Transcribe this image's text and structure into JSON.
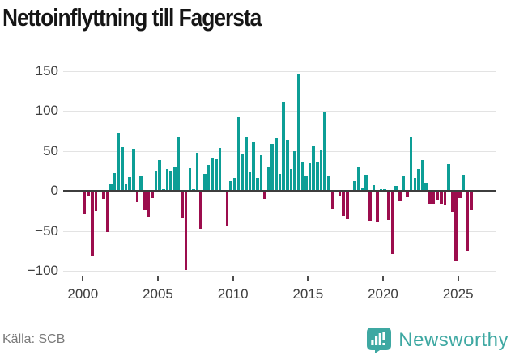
{
  "title": "Nettoinflyttning till Fagersta",
  "footer": {
    "source_label": "Källa: SCB",
    "brand": "Newsworthy"
  },
  "colors": {
    "positive_bar": "#0d9e96",
    "negative_bar": "#9c0d4d",
    "grid": "#e3e3e3",
    "zero_line": "#3d3d3d",
    "axis_text": "#3e3e3e",
    "title_text": "#151515",
    "source_text": "#7a7a7a",
    "brand_teal": "#3ea8a2",
    "background": "#ffffff"
  },
  "chart_data": {
    "type": "bar",
    "title": "Nettoinflyttning till Fagersta",
    "frequency": "quarterly",
    "x_start": "2000Q1",
    "x_end": "2025Q4",
    "ylim": [
      -110,
      160
    ],
    "grid": true,
    "legend": false,
    "y_ticks": [
      {
        "value": 150,
        "label": "150"
      },
      {
        "value": 100,
        "label": "100"
      },
      {
        "value": 50,
        "label": "50"
      },
      {
        "value": 0,
        "label": "0"
      },
      {
        "value": -50,
        "label": "−50"
      },
      {
        "value": -100,
        "label": "−100"
      }
    ],
    "x_ticks": [
      {
        "year": 2000,
        "label": "2000"
      },
      {
        "year": 2005,
        "label": "2005"
      },
      {
        "year": 2010,
        "label": "2010"
      },
      {
        "year": 2015,
        "label": "2015"
      },
      {
        "year": 2020,
        "label": "2020"
      },
      {
        "year": 2025,
        "label": "2025"
      }
    ],
    "series": [
      {
        "name": "Nettoinflyttning",
        "values": [
          -28,
          -5,
          -80,
          -24,
          0,
          -9,
          -50,
          9,
          22,
          72,
          55,
          9,
          17,
          53,
          -13,
          18,
          -23,
          -31,
          -8,
          25,
          38,
          2,
          27,
          24,
          29,
          67,
          -33,
          -98,
          28,
          2,
          47,
          -46,
          21,
          32,
          41,
          39,
          54,
          0,
          -42,
          12,
          16,
          92,
          45,
          67,
          23,
          62,
          16,
          44,
          -9,
          29,
          59,
          66,
          21,
          111,
          64,
          27,
          50,
          145,
          36,
          18,
          35,
          56,
          36,
          51,
          98,
          18,
          -22,
          0,
          -5,
          -30,
          -34,
          0,
          12,
          30,
          4,
          19,
          -36,
          7,
          -38,
          2,
          2,
          -35,
          -78,
          6,
          -12,
          18,
          -6,
          68,
          16,
          27,
          38,
          10,
          -15,
          -15,
          -10,
          -15,
          -16,
          33,
          -25,
          -87,
          -8,
          20,
          -74,
          -23
        ]
      }
    ]
  }
}
